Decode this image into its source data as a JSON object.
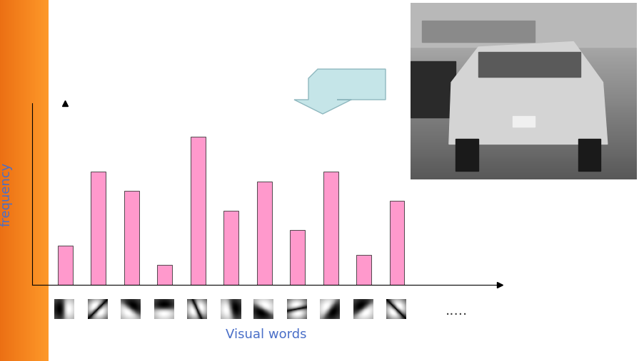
{
  "chart_data": {
    "type": "bar",
    "x_label": "Visual words",
    "y_label": "frequency",
    "categories": [
      null,
      null,
      null,
      null,
      null,
      null,
      null,
      null,
      null,
      null,
      null
    ],
    "values": [
      55,
      159,
      132,
      28,
      208,
      104,
      145,
      77,
      159,
      42,
      118
    ],
    "color": "#ff99cc",
    "ylim": [
      0,
      255
    ],
    "tick_labels": false,
    "annotations": [
      "....."
    ]
  }
}
